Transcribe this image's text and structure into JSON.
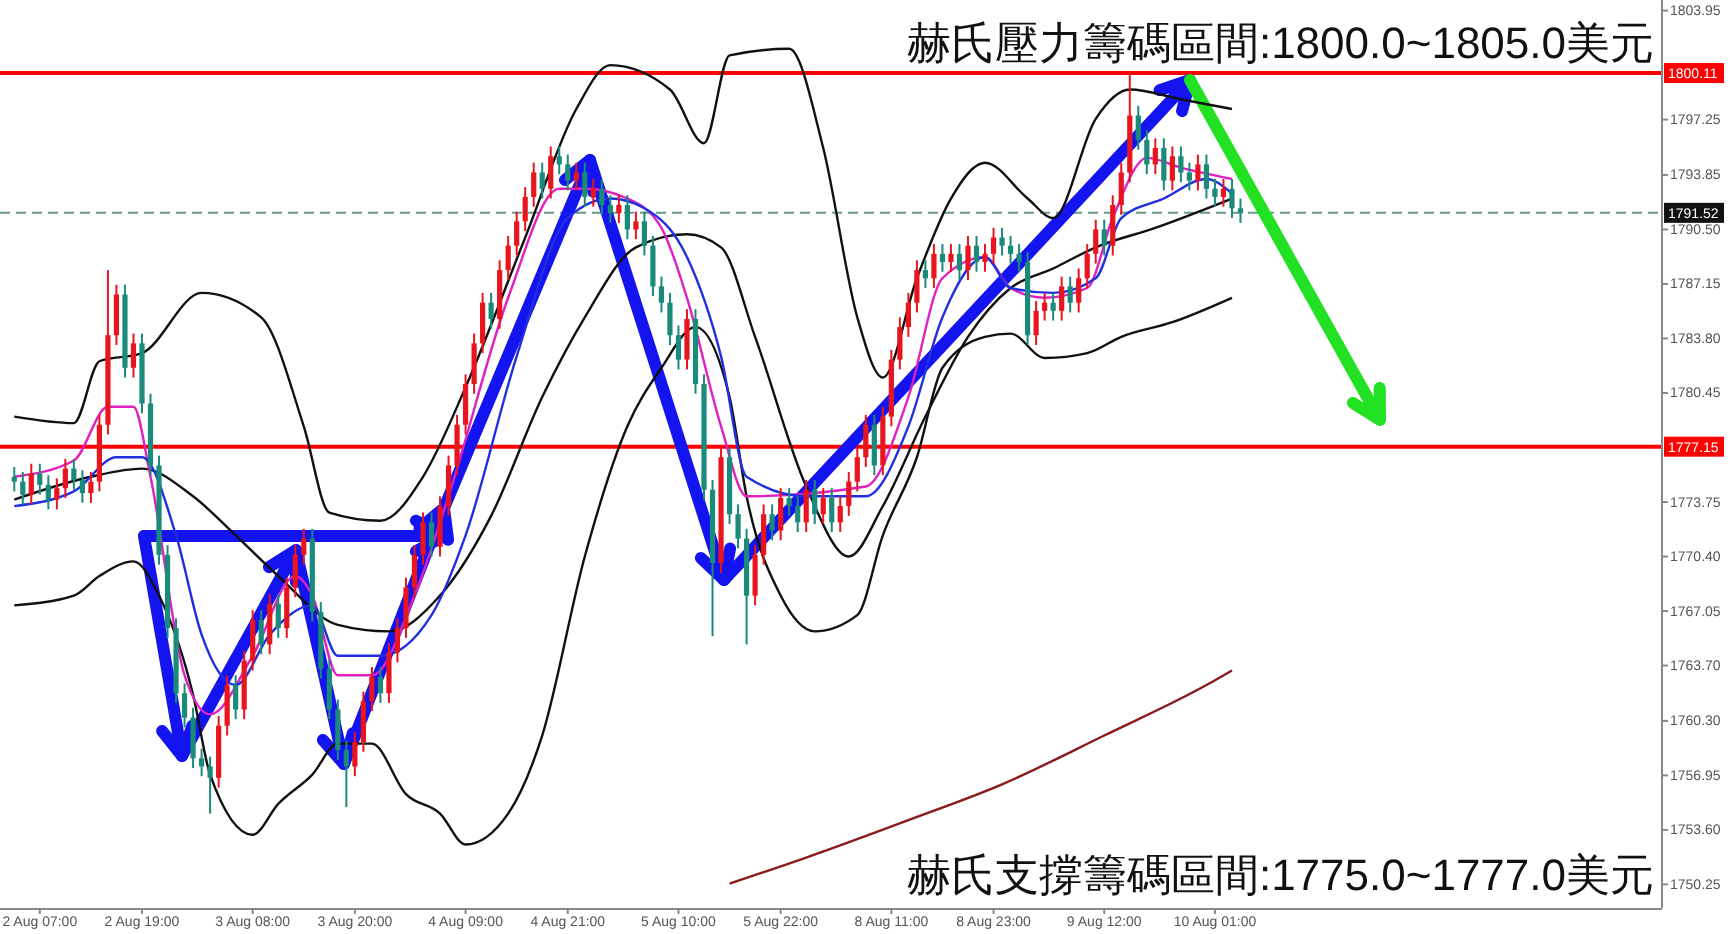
{
  "chart_data": {
    "type": "candlestick",
    "categories": [
      null,
      null,
      null,
      "2 Aug 07:00",
      null,
      null,
      null,
      null,
      null,
      null,
      null,
      null,
      null,
      null,
      null,
      "2 Aug 19:00",
      null,
      null,
      null,
      null,
      null,
      null,
      null,
      null,
      null,
      null,
      null,
      null,
      "3 Aug 08:00",
      null,
      null,
      null,
      null,
      null,
      null,
      null,
      null,
      null,
      null,
      null,
      "3 Aug 20:00",
      null,
      null,
      null,
      null,
      null,
      null,
      null,
      null,
      null,
      null,
      null,
      null,
      "4 Aug 09:00",
      null,
      null,
      null,
      null,
      null,
      null,
      null,
      null,
      null,
      null,
      null,
      "4 Aug 21:00",
      null,
      null,
      null,
      null,
      null,
      null,
      null,
      null,
      null,
      null,
      null,
      null,
      "5 Aug 10:00",
      null,
      null,
      null,
      null,
      null,
      null,
      null,
      null,
      null,
      null,
      null,
      "5 Aug 22:00",
      null,
      null,
      null,
      null,
      null,
      null,
      null,
      null,
      null,
      null,
      null,
      null,
      "8 Aug 11:00",
      null,
      null,
      null,
      null,
      null,
      null,
      null,
      null,
      null,
      null,
      null,
      "8 Aug 23:00",
      null,
      null,
      null,
      null,
      null,
      null,
      null,
      null,
      null,
      null,
      null,
      null,
      "9 Aug 12:00",
      null,
      null,
      null,
      null,
      null,
      null,
      null,
      null,
      null,
      null,
      null,
      null,
      "10 Aug 01:00",
      null,
      null,
      null,
      null,
      null,
      null,
      null,
      null,
      null,
      null,
      null,
      null,
      null,
      null,
      null,
      null,
      null,
      null,
      null,
      null,
      null,
      null,
      null,
      null,
      null,
      null,
      null,
      null,
      null,
      null,
      null,
      null,
      null,
      null,
      null,
      null,
      null,
      null,
      null,
      null,
      null,
      null,
      null,
      null,
      null,
      null,
      null,
      null,
      null,
      null,
      null,
      null
    ],
    "ohlc": [
      [
        1775.3,
        1775.9,
        1774.4,
        1775.0
      ],
      [
        1775.0,
        1775.6,
        1773.6,
        1774.2
      ],
      [
        1774.2,
        1776.1,
        1773.6,
        1775.5
      ],
      [
        1775.5,
        1776.1,
        1774.2,
        1774.8
      ],
      [
        1774.8,
        1775.4,
        1773.3,
        1773.9
      ],
      [
        1773.9,
        1775.2,
        1773.3,
        1774.6
      ],
      [
        1774.6,
        1776.4,
        1774.0,
        1775.8
      ],
      [
        1775.8,
        1776.4,
        1774.5,
        1775.1
      ],
      [
        1775.1,
        1775.7,
        1773.7,
        1774.3
      ],
      [
        1774.3,
        1775.6,
        1773.7,
        1775.0
      ],
      [
        1775.0,
        1779.1,
        1774.4,
        1778.5
      ],
      [
        1778.5,
        1788.0,
        1777.9,
        1784.0
      ],
      [
        1784.0,
        1787.1,
        1783.4,
        1786.5
      ],
      [
        1786.5,
        1787.1,
        1781.4,
        1782.0
      ],
      [
        1782.0,
        1784.1,
        1781.4,
        1783.5
      ],
      [
        1783.5,
        1784.1,
        1779.2,
        1779.8
      ],
      [
        1779.8,
        1780.4,
        1775.4,
        1776.0
      ],
      [
        1776.0,
        1776.6,
        1769.9,
        1770.5
      ],
      [
        1770.5,
        1771.1,
        1765.4,
        1766.0
      ],
      [
        1766.0,
        1766.6,
        1761.4,
        1762.0
      ],
      [
        1762.0,
        1762.6,
        1759.9,
        1760.5
      ],
      [
        1760.5,
        1761.1,
        1757.4,
        1758.0
      ],
      [
        1758.0,
        1758.6,
        1756.9,
        1757.5
      ],
      [
        1757.5,
        1758.1,
        1754.6,
        1756.8
      ],
      [
        1756.8,
        1760.6,
        1756.2,
        1760.0
      ],
      [
        1760.0,
        1763.1,
        1759.4,
        1762.5
      ],
      [
        1762.5,
        1763.1,
        1760.4,
        1761.0
      ],
      [
        1761.0,
        1764.6,
        1760.4,
        1764.0
      ],
      [
        1764.0,
        1767.1,
        1763.4,
        1766.5
      ],
      [
        1766.5,
        1767.1,
        1764.4,
        1765.0
      ],
      [
        1765.0,
        1768.1,
        1764.4,
        1767.5
      ],
      [
        1767.5,
        1768.1,
        1765.4,
        1766.0
      ],
      [
        1766.0,
        1769.1,
        1765.4,
        1768.5
      ],
      [
        1768.5,
        1771.1,
        1767.9,
        1770.5
      ],
      [
        1770.5,
        1772.1,
        1769.9,
        1771.5
      ],
      [
        1771.5,
        1772.1,
        1766.4,
        1767.0
      ],
      [
        1767.0,
        1767.6,
        1762.9,
        1763.5
      ],
      [
        1763.5,
        1764.1,
        1760.4,
        1761.0
      ],
      [
        1761.0,
        1761.6,
        1757.9,
        1758.5
      ],
      [
        1758.5,
        1759.1,
        1755.0,
        1757.5
      ],
      [
        1757.5,
        1759.6,
        1756.9,
        1759.0
      ],
      [
        1759.0,
        1762.1,
        1758.4,
        1761.5
      ],
      [
        1761.5,
        1763.6,
        1760.9,
        1763.0
      ],
      [
        1763.0,
        1763.6,
        1761.4,
        1762.0
      ],
      [
        1762.0,
        1765.1,
        1761.4,
        1764.5
      ],
      [
        1764.5,
        1766.6,
        1763.9,
        1766.0
      ],
      [
        1766.0,
        1769.1,
        1765.4,
        1768.5
      ],
      [
        1768.5,
        1771.1,
        1767.9,
        1770.5
      ],
      [
        1770.5,
        1773.1,
        1769.9,
        1772.5
      ],
      [
        1772.5,
        1773.1,
        1770.4,
        1771.0
      ],
      [
        1771.0,
        1774.1,
        1770.4,
        1773.5
      ],
      [
        1773.5,
        1776.6,
        1772.9,
        1776.0
      ],
      [
        1776.0,
        1779.1,
        1775.4,
        1778.5
      ],
      [
        1778.5,
        1781.6,
        1777.9,
        1781.0
      ],
      [
        1781.0,
        1784.1,
        1780.4,
        1783.5
      ],
      [
        1783.5,
        1786.6,
        1782.9,
        1786.0
      ],
      [
        1786.0,
        1786.6,
        1784.4,
        1785.0
      ],
      [
        1785.0,
        1788.6,
        1784.4,
        1788.0
      ],
      [
        1788.0,
        1790.1,
        1787.4,
        1789.5
      ],
      [
        1789.5,
        1791.6,
        1788.9,
        1791.0
      ],
      [
        1791.0,
        1793.1,
        1790.4,
        1792.5
      ],
      [
        1792.5,
        1794.6,
        1791.9,
        1794.0
      ],
      [
        1794.0,
        1794.6,
        1792.4,
        1793.0
      ],
      [
        1793.0,
        1795.6,
        1792.4,
        1795.0
      ],
      [
        1795.0,
        1795.6,
        1793.9,
        1794.5
      ],
      [
        1794.5,
        1795.1,
        1792.9,
        1793.5
      ],
      [
        1793.5,
        1794.6,
        1792.9,
        1794.0
      ],
      [
        1794.0,
        1794.6,
        1791.9,
        1792.5
      ],
      [
        1792.5,
        1793.6,
        1791.9,
        1793.0
      ],
      [
        1793.0,
        1793.6,
        1791.4,
        1792.0
      ],
      [
        1792.0,
        1792.6,
        1790.9,
        1791.5
      ],
      [
        1791.5,
        1792.6,
        1790.9,
        1792.0
      ],
      [
        1792.0,
        1792.6,
        1789.9,
        1790.5
      ],
      [
        1790.5,
        1791.6,
        1789.9,
        1791.0
      ],
      [
        1791.0,
        1791.6,
        1788.9,
        1789.5
      ],
      [
        1789.5,
        1790.1,
        1786.4,
        1787.0
      ],
      [
        1787.0,
        1787.6,
        1785.4,
        1786.0
      ],
      [
        1786.0,
        1786.6,
        1783.4,
        1784.0
      ],
      [
        1784.0,
        1784.6,
        1781.9,
        1782.5
      ],
      [
        1782.5,
        1785.6,
        1781.9,
        1785.0
      ],
      [
        1785.0,
        1785.6,
        1780.4,
        1781.0
      ],
      [
        1781.0,
        1781.6,
        1773.9,
        1774.5
      ],
      [
        1774.5,
        1775.1,
        1765.5,
        1770.0
      ],
      [
        1770.0,
        1777.1,
        1769.4,
        1776.5
      ],
      [
        1776.5,
        1777.1,
        1772.4,
        1773.0
      ],
      [
        1773.0,
        1773.6,
        1770.9,
        1771.5
      ],
      [
        1771.5,
        1772.1,
        1765.0,
        1768.0
      ],
      [
        1768.0,
        1771.1,
        1767.4,
        1770.5
      ],
      [
        1770.5,
        1773.6,
        1769.9,
        1773.0
      ],
      [
        1773.0,
        1773.6,
        1771.4,
        1772.0
      ],
      [
        1772.0,
        1774.6,
        1771.4,
        1774.0
      ],
      [
        1774.0,
        1774.6,
        1772.9,
        1773.5
      ],
      [
        1773.5,
        1774.1,
        1771.9,
        1772.5
      ],
      [
        1772.5,
        1775.1,
        1771.9,
        1774.5
      ],
      [
        1774.5,
        1775.1,
        1772.4,
        1773.0
      ],
      [
        1773.0,
        1774.6,
        1772.4,
        1774.0
      ],
      [
        1774.0,
        1774.6,
        1771.9,
        1772.5
      ],
      [
        1772.5,
        1774.1,
        1771.9,
        1773.5
      ],
      [
        1773.5,
        1775.6,
        1772.9,
        1775.0
      ],
      [
        1775.0,
        1777.1,
        1774.4,
        1776.5
      ],
      [
        1776.5,
        1779.1,
        1775.9,
        1778.5
      ],
      [
        1778.5,
        1779.1,
        1775.4,
        1776.0
      ],
      [
        1776.0,
        1779.6,
        1775.4,
        1779.0
      ],
      [
        1779.0,
        1783.1,
        1778.4,
        1782.5
      ],
      [
        1782.5,
        1785.1,
        1781.9,
        1784.5
      ],
      [
        1784.5,
        1786.6,
        1783.9,
        1786.0
      ],
      [
        1786.0,
        1788.6,
        1785.4,
        1788.0
      ],
      [
        1788.0,
        1788.6,
        1786.9,
        1787.5
      ],
      [
        1787.5,
        1789.6,
        1786.9,
        1789.0
      ],
      [
        1789.0,
        1789.6,
        1787.9,
        1788.5
      ],
      [
        1788.5,
        1789.6,
        1787.9,
        1789.0
      ],
      [
        1789.0,
        1789.6,
        1787.4,
        1788.0
      ],
      [
        1788.0,
        1790.1,
        1787.4,
        1789.5
      ],
      [
        1789.5,
        1790.1,
        1787.9,
        1788.5
      ],
      [
        1788.5,
        1789.6,
        1787.9,
        1789.0
      ],
      [
        1789.0,
        1790.6,
        1788.4,
        1790.0
      ],
      [
        1790.0,
        1790.6,
        1788.9,
        1789.5
      ],
      [
        1789.5,
        1790.1,
        1788.4,
        1789.0
      ],
      [
        1789.0,
        1789.6,
        1787.9,
        1788.5
      ],
      [
        1788.5,
        1789.1,
        1783.4,
        1784.0
      ],
      [
        1784.0,
        1786.1,
        1783.4,
        1785.5
      ],
      [
        1785.5,
        1786.6,
        1784.9,
        1786.0
      ],
      [
        1786.0,
        1786.6,
        1784.9,
        1785.5
      ],
      [
        1785.5,
        1787.6,
        1784.9,
        1787.0
      ],
      [
        1787.0,
        1787.6,
        1785.4,
        1786.0
      ],
      [
        1786.0,
        1788.1,
        1785.4,
        1787.5
      ],
      [
        1787.5,
        1789.6,
        1786.9,
        1789.0
      ],
      [
        1789.0,
        1791.1,
        1788.4,
        1790.5
      ],
      [
        1790.5,
        1791.1,
        1788.9,
        1789.5
      ],
      [
        1789.5,
        1792.6,
        1788.9,
        1792.0
      ],
      [
        1792.0,
        1794.6,
        1791.4,
        1794.0
      ],
      [
        1794.0,
        1800.1,
        1793.4,
        1797.5
      ],
      [
        1797.5,
        1798.1,
        1795.4,
        1796.0
      ],
      [
        1796.0,
        1796.6,
        1793.9,
        1794.5
      ],
      [
        1794.5,
        1796.1,
        1793.9,
        1795.5
      ],
      [
        1795.5,
        1796.1,
        1792.9,
        1793.5
      ],
      [
        1793.5,
        1795.6,
        1792.9,
        1795.0
      ],
      [
        1795.0,
        1795.6,
        1793.4,
        1794.0
      ],
      [
        1794.0,
        1794.6,
        1792.9,
        1793.5
      ],
      [
        1793.5,
        1795.1,
        1792.9,
        1794.5
      ],
      [
        1794.5,
        1795.1,
        1792.4,
        1793.0
      ],
      [
        1793.0,
        1793.6,
        1791.9,
        1792.5
      ],
      [
        1792.5,
        1793.6,
        1791.9,
        1793.0
      ],
      [
        1793.0,
        1793.6,
        1791.2,
        1791.8
      ],
      [
        1791.8,
        1792.4,
        1790.9,
        1791.5
      ],
      null,
      null,
      null,
      null,
      null,
      null,
      null,
      null,
      null,
      null,
      null,
      null,
      null,
      null,
      null,
      null,
      null,
      null,
      null,
      null,
      null,
      null,
      null,
      null,
      null,
      null,
      null,
      null,
      null,
      null,
      null,
      null,
      null,
      null,
      null,
      null,
      null,
      null,
      null,
      null,
      null,
      null,
      null,
      null,
      null,
      null,
      null,
      null,
      null
    ],
    "series": [
      {
        "type": "line",
        "color": "#111111",
        "values": [
          1779.0,
          null,
          null,
          null,
          null,
          null,
          null,
          1778.6,
          null,
          null,
          1782.4,
          null,
          null,
          null,
          null,
          1782.9,
          null,
          null,
          null,
          null,
          null,
          null,
          1786.6,
          null,
          null,
          null,
          null,
          null,
          null,
          1785.1,
          null,
          null,
          null,
          null,
          1778.4,
          null,
          null,
          1773.1,
          null,
          null,
          null,
          null,
          null,
          1772.6,
          null,
          null,
          null,
          null,
          1775.3,
          null,
          null,
          null,
          null,
          1780.8,
          null,
          null,
          null,
          null,
          null,
          null,
          1790.0,
          null,
          null,
          null,
          null,
          null,
          1797.9,
          null,
          null,
          null,
          1800.6,
          null,
          null,
          null,
          null,
          null,
          null,
          1799.1,
          null,
          null,
          null,
          1795.8,
          null,
          null,
          1801.2,
          null,
          null,
          null,
          null,
          null,
          null,
          1801.6,
          null,
          null,
          null,
          1795.5,
          null,
          null,
          null,
          1785.1,
          null,
          null,
          1781.4,
          null,
          null,
          null,
          1787.5,
          null,
          null,
          null,
          1792.4,
          null,
          null,
          null,
          1794.6,
          null,
          null,
          null,
          null,
          1792.4,
          null,
          null,
          1791.2,
          null,
          null,
          null,
          null,
          1797.3,
          null,
          null,
          null,
          1799.1,
          null,
          null,
          null,
          null,
          null,
          1798.5,
          null,
          null,
          null,
          null,
          null,
          1797.9,
          null,
          null,
          null,
          null,
          null,
          null,
          null,
          null,
          null,
          null,
          null,
          null,
          null,
          null,
          null,
          null,
          null,
          null,
          null,
          null,
          null,
          null,
          null,
          null,
          null,
          null,
          null,
          null,
          null,
          null,
          null,
          null,
          null,
          null,
          null,
          null,
          null,
          null,
          null,
          null,
          null,
          null,
          null,
          null,
          null,
          null,
          null,
          null,
          null,
          null
        ]
      },
      {
        "type": "line",
        "color": "#111111",
        "values": [
          1773.9,
          null,
          null,
          null,
          null,
          null,
          null,
          null,
          null,
          1775.3,
          null,
          null,
          null,
          null,
          null,
          1775.8,
          null,
          null,
          null,
          null,
          null,
          1774.1,
          null,
          null,
          null,
          null,
          1771.7,
          null,
          null,
          null,
          null,
          1769.2,
          null,
          null,
          null,
          null,
          null,
          null,
          1766.2,
          null,
          null,
          null,
          null,
          null,
          1765.8,
          null,
          null,
          null,
          null,
          null,
          1768.0,
          null,
          null,
          null,
          null,
          null,
          1772.9,
          null,
          null,
          null,
          null,
          null,
          1780.2,
          null,
          null,
          null,
          null,
          1785.1,
          null,
          null,
          null,
          null,
          null,
          1789.4,
          null,
          null,
          null,
          null,
          null,
          1790.2,
          null,
          null,
          null,
          1789.4,
          null,
          null,
          null,
          1783.9,
          null,
          null,
          null,
          null,
          null,
          1774.7,
          null,
          null,
          null,
          null,
          1770.4,
          null,
          null,
          null,
          1773.5,
          null,
          null,
          null,
          null,
          1779.0,
          null,
          null,
          null,
          null,
          1783.9,
          null,
          null,
          null,
          null,
          1786.9,
          null,
          null,
          null,
          null,
          1788.1,
          null,
          null,
          null,
          null,
          1789.4,
          null,
          null,
          null,
          null,
          null,
          null,
          1790.6,
          null,
          null,
          null,
          null,
          null,
          null,
          null,
          null,
          1792.4,
          null,
          null,
          null,
          null,
          null,
          null,
          null,
          null,
          null,
          null,
          null,
          null,
          null,
          null,
          null,
          null,
          null,
          null,
          null,
          null,
          null,
          null,
          null,
          null,
          null,
          null,
          null,
          null,
          null,
          null,
          null,
          null,
          null,
          null,
          null,
          null,
          null,
          null,
          null,
          null,
          null,
          null,
          null,
          null,
          null,
          null,
          null,
          null,
          null,
          null
        ]
      },
      {
        "type": "line",
        "color": "#111111",
        "values": [
          1767.4,
          null,
          null,
          null,
          null,
          null,
          null,
          1768.0,
          null,
          null,
          1769.2,
          null,
          null,
          null,
          1770.1,
          null,
          null,
          1768.0,
          null,
          null,
          null,
          1761.9,
          null,
          1757.0,
          null,
          null,
          null,
          null,
          1753.3,
          null,
          null,
          1755.2,
          null,
          null,
          null,
          1757.0,
          null,
          null,
          1758.9,
          null,
          null,
          null,
          1758.9,
          null,
          null,
          null,
          1755.8,
          null,
          null,
          null,
          1754.6,
          null,
          null,
          1752.7,
          null,
          null,
          null,
          null,
          1754.6,
          null,
          null,
          null,
          1759.4,
          null,
          null,
          null,
          null,
          1770.4,
          null,
          null,
          null,
          null,
          1778.4,
          null,
          null,
          null,
          1782.0,
          null,
          null,
          null,
          1784.5,
          null,
          null,
          null,
          1780.2,
          null,
          1774.1,
          null,
          null,
          null,
          1768.0,
          null,
          null,
          null,
          1765.8,
          null,
          null,
          null,
          null,
          1766.8,
          null,
          null,
          1771.7,
          null,
          null,
          null,
          1776.5,
          null,
          null,
          1782.0,
          null,
          null,
          null,
          null,
          1783.9,
          null,
          null,
          1784.1,
          null,
          null,
          null,
          1782.6,
          null,
          null,
          null,
          null,
          1782.9,
          null,
          null,
          null,
          1783.9,
          null,
          null,
          null,
          null,
          null,
          1784.8,
          null,
          null,
          null,
          null,
          null,
          null,
          1786.3,
          null,
          null,
          null,
          null,
          null,
          null,
          null,
          null,
          null,
          null,
          null,
          null,
          null,
          null,
          null,
          null,
          null,
          null,
          null,
          null,
          null,
          null,
          null,
          null,
          null,
          null,
          null,
          null,
          null,
          null,
          null,
          null,
          null,
          null,
          null,
          null,
          null,
          null,
          null,
          null,
          null,
          null,
          null,
          null,
          null,
          null,
          null,
          null,
          null,
          null
        ]
      },
      {
        "type": "line",
        "color": "#e020c0",
        "values": [
          1775.3,
          null,
          null,
          null,
          null,
          null,
          null,
          1776.3,
          null,
          null,
          null,
          1779.6,
          null,
          null,
          1779.6,
          null,
          1775.3,
          null,
          null,
          null,
          1763.1,
          null,
          null,
          1760.7,
          null,
          null,
          null,
          null,
          1764.3,
          null,
          null,
          null,
          null,
          1769.2,
          null,
          1768.0,
          null,
          null,
          1763.1,
          null,
          null,
          null,
          1763.1,
          null,
          null,
          null,
          null,
          1768.0,
          null,
          null,
          null,
          1774.1,
          null,
          null,
          null,
          null,
          null,
          null,
          1786.3,
          null,
          null,
          null,
          null,
          null,
          1793.0,
          null,
          null,
          1793.0,
          null,
          null,
          null,
          null,
          1792.4,
          null,
          null,
          null,
          1790.6,
          null,
          null,
          1786.3,
          null,
          null,
          null,
          1778.4,
          null,
          null,
          1774.1,
          null,
          null,
          null,
          null,
          null,
          null,
          null,
          null,
          null,
          null,
          null,
          null,
          null,
          1774.7,
          null,
          null,
          null,
          null,
          1780.2,
          null,
          null,
          null,
          1787.5,
          null,
          null,
          null,
          null,
          1788.8,
          null,
          null,
          1786.9,
          null,
          null,
          null,
          1786.3,
          null,
          null,
          null,
          null,
          1786.9,
          null,
          null,
          1791.2,
          null,
          null,
          null,
          1794.9,
          null,
          null,
          null,
          1794.3,
          null,
          null,
          null,
          null,
          null,
          1793.6,
          null,
          null,
          null,
          null,
          null,
          null,
          null,
          null,
          null,
          null,
          null,
          null,
          null,
          null,
          null,
          null,
          null,
          null,
          null,
          null,
          null,
          null,
          null,
          null,
          null,
          null,
          null,
          null,
          null,
          null,
          null,
          null,
          null,
          null,
          null,
          null,
          null,
          null,
          null,
          null,
          null,
          null,
          null,
          null,
          null,
          null,
          null,
          null,
          null,
          null
        ]
      },
      {
        "type": "line",
        "color": "#2030e0",
        "values": [
          1773.5,
          null,
          null,
          null,
          null,
          null,
          null,
          1774.4,
          null,
          null,
          null,
          null,
          1776.5,
          null,
          null,
          1776.5,
          null,
          null,
          null,
          1771.7,
          null,
          null,
          1765.6,
          null,
          null,
          null,
          1762.5,
          null,
          null,
          null,
          1765.6,
          null,
          null,
          null,
          null,
          1767.4,
          null,
          null,
          1764.3,
          null,
          null,
          null,
          null,
          1764.3,
          null,
          null,
          null,
          null,
          null,
          1766.8,
          null,
          null,
          null,
          1771.7,
          null,
          null,
          null,
          null,
          null,
          1782.7,
          null,
          null,
          null,
          null,
          null,
          1791.2,
          null,
          null,
          null,
          null,
          1792.4,
          null,
          null,
          null,
          1791.8,
          null,
          null,
          null,
          null,
          1788.8,
          null,
          null,
          null,
          1782.7,
          null,
          null,
          1775.3,
          null,
          null,
          null,
          null,
          null,
          null,
          1774.1,
          null,
          null,
          null,
          null,
          null,
          null,
          1774.1,
          null,
          null,
          null,
          null,
          1778.4,
          null,
          null,
          null,
          1785.1,
          null,
          null,
          null,
          null,
          1788.8,
          null,
          null,
          1786.9,
          null,
          null,
          null,
          null,
          1786.6,
          null,
          null,
          null,
          null,
          1787.5,
          null,
          null,
          1791.2,
          null,
          null,
          null,
          null,
          1792.4,
          null,
          null,
          null,
          null,
          1793.6,
          null,
          null,
          1792.7,
          null,
          null,
          null,
          null,
          null,
          null,
          null,
          null,
          null,
          null,
          null,
          null,
          null,
          null,
          null,
          null,
          null,
          null,
          null,
          null,
          null,
          null,
          null,
          null,
          null,
          null,
          null,
          null,
          null,
          null,
          null,
          null,
          null,
          null,
          null,
          null,
          null,
          null,
          null,
          null,
          null,
          null,
          null,
          null,
          null,
          null,
          null,
          null,
          null,
          null
        ]
      },
      {
        "type": "line",
        "color": "#8b1a1a",
        "values": [
          null,
          null,
          null,
          null,
          null,
          null,
          null,
          null,
          null,
          null,
          null,
          null,
          null,
          null,
          null,
          null,
          null,
          null,
          null,
          null,
          null,
          null,
          null,
          null,
          null,
          null,
          null,
          null,
          null,
          null,
          null,
          null,
          null,
          null,
          null,
          null,
          null,
          null,
          null,
          null,
          null,
          null,
          null,
          null,
          null,
          null,
          null,
          null,
          null,
          null,
          null,
          null,
          null,
          null,
          null,
          null,
          null,
          null,
          null,
          null,
          null,
          null,
          null,
          null,
          null,
          null,
          null,
          null,
          null,
          null,
          null,
          null,
          null,
          null,
          null,
          null,
          null,
          null,
          null,
          null,
          null,
          null,
          null,
          null,
          1750.3,
          null,
          null,
          null,
          null,
          null,
          null,
          null,
          null,
          1751.9,
          null,
          null,
          null,
          null,
          null,
          null,
          null,
          null,
          null,
          null,
          null,
          1754.2,
          null,
          null,
          null,
          null,
          null,
          null,
          null,
          null,
          null,
          null,
          1756.4,
          null,
          null,
          null,
          null,
          null,
          null,
          null,
          null,
          null,
          null,
          null,
          1759.4,
          null,
          null,
          null,
          null,
          null,
          null,
          null,
          null,
          null,
          null,
          null,
          1762.5,
          null,
          null,
          1763.4,
          null,
          null,
          null,
          null,
          null,
          null,
          null,
          null,
          null,
          null,
          null,
          null,
          null,
          null,
          null,
          null,
          null,
          null,
          null,
          null,
          null,
          null,
          null,
          null,
          null,
          null,
          null,
          null,
          null,
          null,
          null,
          null,
          null,
          null,
          null,
          null,
          null,
          null,
          null,
          null,
          null,
          null,
          null,
          null,
          null,
          null,
          null,
          null,
          null,
          null
        ]
      }
    ],
    "ylim": [
      1748.8,
      1804.6
    ],
    "yticks": [
      1803.95,
      1797.25,
      1793.85,
      {
        "value": 1790.5,
        "label": "1790.50"
      },
      1787.15,
      {
        "value": 1783.8,
        "label": "1783.80"
      },
      1780.45,
      1773.75,
      {
        "value": 1770.4,
        "label": "1770.40"
      },
      1767.05,
      {
        "value": 1763.7,
        "label": "1763.70"
      },
      {
        "value": 1760.3,
        "label": "1760.30"
      },
      1756.95,
      {
        "value": 1753.6,
        "label": "1753.60"
      },
      1750.25
    ],
    "ref_lines": [
      {
        "axis": "y",
        "value": 1800.11,
        "label": "1800.11",
        "color": "#ff0000",
        "line_style": "solid"
      },
      {
        "axis": "y",
        "value": 1777.15,
        "label": "1777.15",
        "color": "#ff0000",
        "line_style": "solid"
      },
      {
        "axis": "y",
        "value": 1791.52,
        "label": "1791.52",
        "color": "#6a9a8a",
        "line_style": "dashed"
      }
    ],
    "annotations": [
      "赫氏壓力籌碼區間:1800.0~1805.0美元",
      "赫氏支撐籌碼區間:1775.0~1777.0美元"
    ]
  }
}
